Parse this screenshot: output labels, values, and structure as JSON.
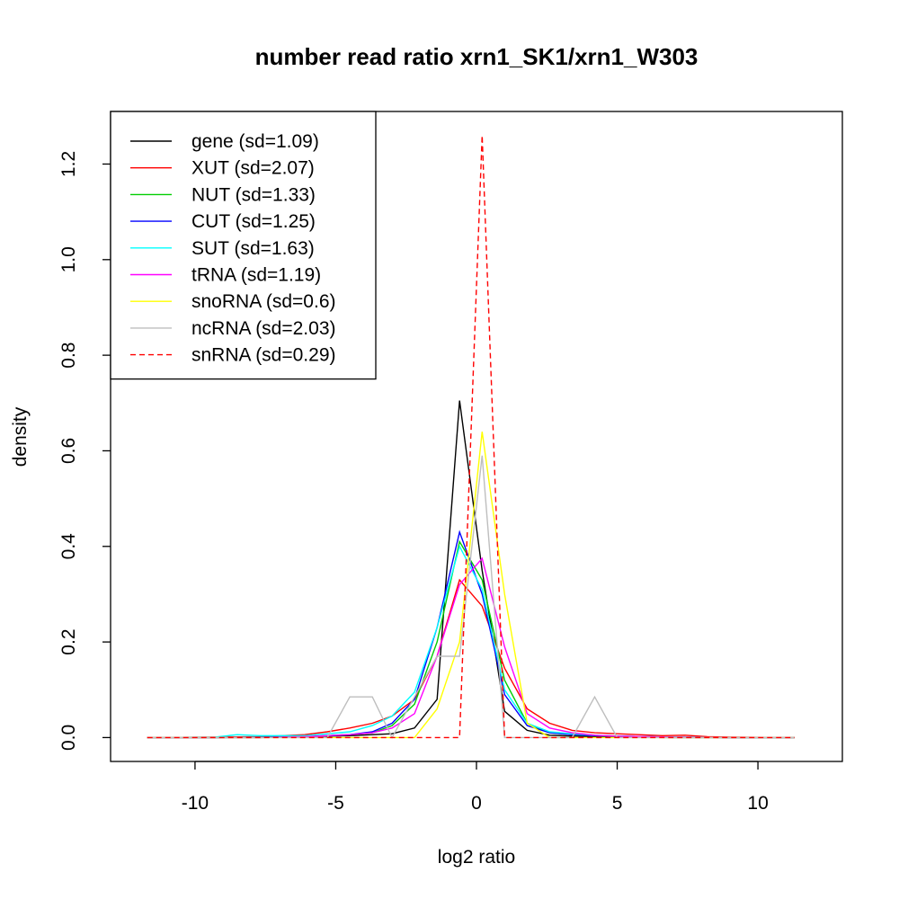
{
  "chart_data": {
    "type": "line",
    "title": "number read ratio xrn1_SK1/xrn1_W303",
    "xlabel": "log2 ratio",
    "ylabel": "density",
    "xlim": [
      -13,
      13
    ],
    "ylim": [
      -0.05,
      1.31
    ],
    "x_ticks": [
      -10,
      -5,
      0,
      5,
      10
    ],
    "x_tick_labels": [
      "-10",
      "-5",
      "0",
      "5",
      "10"
    ],
    "y_ticks": [
      0.0,
      0.2,
      0.4,
      0.6,
      0.8,
      1.0,
      1.2
    ],
    "y_tick_labels": [
      "0.0",
      "0.2",
      "0.4",
      "0.6",
      "0.8",
      "1.0",
      "1.2"
    ],
    "grid": false,
    "legend_position": "top-left",
    "series": [
      {
        "name": "gene (sd=1.09)",
        "color": "#000000",
        "dash": false,
        "x": [
          -11.7,
          -9.3,
          -7.7,
          -6.1,
          -4.5,
          -3.0,
          -2.2,
          -1.4,
          -0.6,
          0.2,
          1.0,
          1.8,
          2.6,
          3.4,
          5.0,
          7.0,
          9.0,
          11.3
        ],
        "y": [
          0.0,
          0.0,
          0.0,
          0.002,
          0.004,
          0.008,
          0.02,
          0.08,
          0.705,
          0.35,
          0.055,
          0.015,
          0.005,
          0.003,
          0.001,
          0.0,
          0.0,
          0.0
        ]
      },
      {
        "name": "XUT (sd=2.07)",
        "color": "#ff0000",
        "dash": false,
        "x": [
          -11.7,
          -9.3,
          -7.7,
          -6.1,
          -5.3,
          -4.5,
          -3.7,
          -3.0,
          -2.2,
          -1.4,
          -0.6,
          0.2,
          1.0,
          1.8,
          2.6,
          3.4,
          4.2,
          5.0,
          6.6,
          7.4,
          8.2,
          9.0,
          11.3
        ],
        "y": [
          0.0,
          0.001,
          0.002,
          0.006,
          0.012,
          0.02,
          0.03,
          0.045,
          0.08,
          0.17,
          0.33,
          0.275,
          0.145,
          0.06,
          0.03,
          0.015,
          0.01,
          0.008,
          0.004,
          0.005,
          0.002,
          0.001,
          0.0
        ]
      },
      {
        "name": "NUT (sd=1.33)",
        "color": "#00cd00",
        "dash": false,
        "x": [
          -11.7,
          -9.3,
          -7.7,
          -6.1,
          -5.3,
          -4.5,
          -3.7,
          -3.0,
          -2.2,
          -1.4,
          -0.6,
          0.2,
          1.0,
          1.8,
          2.6,
          3.4,
          4.2,
          5.0,
          7.0,
          9.0,
          11.3
        ],
        "y": [
          0.0,
          0.0,
          0.001,
          0.002,
          0.004,
          0.006,
          0.01,
          0.025,
          0.07,
          0.2,
          0.41,
          0.33,
          0.12,
          0.03,
          0.01,
          0.006,
          0.004,
          0.003,
          0.001,
          0.0,
          0.0
        ]
      },
      {
        "name": "CUT (sd=1.25)",
        "color": "#0000ff",
        "dash": false,
        "x": [
          -11.7,
          -9.3,
          -7.7,
          -6.1,
          -5.3,
          -4.5,
          -3.7,
          -3.0,
          -2.2,
          -1.4,
          -0.6,
          0.2,
          1.0,
          1.8,
          2.6,
          3.4,
          4.2,
          5.0,
          7.0,
          9.0,
          11.3
        ],
        "y": [
          0.0,
          0.0,
          0.001,
          0.002,
          0.004,
          0.006,
          0.012,
          0.03,
          0.08,
          0.23,
          0.43,
          0.3,
          0.09,
          0.025,
          0.01,
          0.006,
          0.004,
          0.003,
          0.001,
          0.0,
          0.0
        ]
      },
      {
        "name": "SUT (sd=1.63)",
        "color": "#00ffff",
        "dash": false,
        "x": [
          -11.7,
          -9.3,
          -8.5,
          -7.7,
          -6.1,
          -5.3,
          -4.5,
          -3.7,
          -3.0,
          -2.2,
          -1.4,
          -0.6,
          0.2,
          1.0,
          1.8,
          2.6,
          3.4,
          4.2,
          5.0,
          7.0,
          9.0,
          11.3
        ],
        "y": [
          0.0,
          0.001,
          0.006,
          0.004,
          0.004,
          0.008,
          0.012,
          0.025,
          0.045,
          0.095,
          0.23,
          0.4,
          0.31,
          0.1,
          0.03,
          0.012,
          0.008,
          0.005,
          0.003,
          0.001,
          0.0,
          0.0
        ]
      },
      {
        "name": "tRNA (sd=1.19)",
        "color": "#ff00ff",
        "dash": false,
        "x": [
          -11.7,
          -9.3,
          -7.7,
          -6.1,
          -5.3,
          -4.5,
          -3.7,
          -3.0,
          -2.2,
          -1.4,
          -0.6,
          0.2,
          1.0,
          1.8,
          2.6,
          3.4,
          4.2,
          5.0,
          7.0,
          9.0,
          11.3
        ],
        "y": [
          0.0,
          0.0,
          0.0,
          0.002,
          0.004,
          0.006,
          0.01,
          0.02,
          0.05,
          0.17,
          0.32,
          0.375,
          0.19,
          0.05,
          0.02,
          0.01,
          0.005,
          0.003,
          0.001,
          0.0,
          0.0
        ]
      },
      {
        "name": "snoRNA (sd=0.6)",
        "color": "#ffff00",
        "dash": false,
        "x": [
          -11.7,
          -5.3,
          -3.0,
          -2.2,
          -1.4,
          -0.6,
          0.2,
          1.0,
          1.8,
          2.6,
          5.0,
          11.3
        ],
        "y": [
          0.0,
          0.0,
          0.0,
          0.0,
          0.06,
          0.2,
          0.64,
          0.3,
          0.03,
          0.0,
          0.0,
          0.0
        ]
      },
      {
        "name": "ncRNA (sd=2.03)",
        "color": "#bebebe",
        "dash": false,
        "x": [
          -11.7,
          -5.3,
          -4.5,
          -3.7,
          -3.0,
          -2.2,
          -1.4,
          -0.6,
          0.2,
          1.0,
          1.8,
          2.6,
          3.4,
          4.2,
          5.0,
          11.3
        ],
        "y": [
          0.0,
          0.0,
          0.085,
          0.085,
          0.0,
          0.085,
          0.17,
          0.17,
          0.59,
          0.0,
          0.0,
          0.0,
          0.0,
          0.085,
          0.0,
          0.0
        ]
      },
      {
        "name": "snRNA (sd=0.29)",
        "color": "#ff0000",
        "dash": true,
        "x": [
          -11.7,
          -0.6,
          0.2,
          1.0,
          11.3
        ],
        "y": [
          0.0,
          0.0,
          1.26,
          0.0,
          0.0
        ]
      }
    ]
  }
}
